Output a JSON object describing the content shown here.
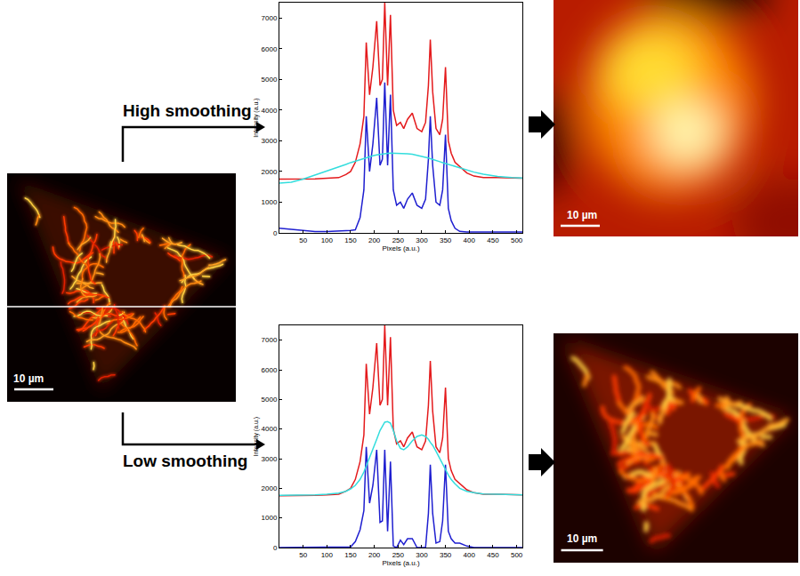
{
  "panels": {
    "source_scale_bar": "10 µm",
    "high_label": "High smoothing",
    "low_label": "Low smoothing",
    "result_scale_bars": [
      "10 µm",
      "10 µm"
    ]
  },
  "chart_data": [
    {
      "type": "line",
      "xlabel": "Pixels (a.u.)",
      "ylabel": "Intensity (a.u.)",
      "grid": false,
      "xlim": [
        0,
        512
      ],
      "ylim": [
        0,
        7500
      ],
      "xticks": [
        50,
        100,
        150,
        200,
        250,
        300,
        350,
        400,
        450,
        500
      ],
      "yticks": [
        0,
        1000,
        2000,
        3000,
        4000,
        5000,
        6000,
        7000
      ],
      "x": [
        0,
        25,
        50,
        75,
        100,
        125,
        140,
        150,
        160,
        170,
        178,
        183,
        190,
        197,
        205,
        212,
        217,
        222,
        228,
        234,
        240,
        247,
        255,
        262,
        270,
        280,
        290,
        300,
        308,
        314,
        318,
        323,
        330,
        338,
        344,
        350,
        356,
        362,
        370,
        380,
        395,
        410,
        430,
        460,
        490,
        512
      ],
      "series": [
        {
          "color": "#e41a1c",
          "values": [
            1750,
            1750,
            1760,
            1760,
            1780,
            1800,
            1900,
            2000,
            2300,
            2900,
            3800,
            6200,
            4500,
            5400,
            6900,
            4800,
            5000,
            7500,
            4800,
            7100,
            4000,
            3500,
            3600,
            3400,
            3700,
            3900,
            3400,
            3300,
            3600,
            4800,
            6300,
            4600,
            3400,
            3200,
            3700,
            5400,
            3000,
            2600,
            2300,
            2150,
            1950,
            1850,
            1800,
            1800,
            1780,
            1780
          ]
        },
        {
          "color": "#1f1fd0",
          "values": [
            150,
            110,
            60,
            40,
            40,
            50,
            60,
            80,
            100,
            500,
            1400,
            3800,
            2000,
            2900,
            4400,
            2200,
            2400,
            4900,
            2200,
            4500,
            1400,
            900,
            1000,
            800,
            1100,
            1300,
            900,
            800,
            1100,
            2400,
            3800,
            2200,
            1000,
            900,
            1400,
            3200,
            800,
            400,
            150,
            50,
            30,
            30,
            30,
            30,
            30,
            30
          ]
        },
        {
          "color": "#33dddd",
          "values": [
            1620,
            1650,
            1750,
            1880,
            2000,
            2150,
            2230,
            2290,
            2340,
            2390,
            2430,
            2450,
            2480,
            2510,
            2540,
            2560,
            2570,
            2580,
            2590,
            2600,
            2600,
            2600,
            2600,
            2590,
            2580,
            2560,
            2530,
            2500,
            2470,
            2440,
            2420,
            2400,
            2360,
            2320,
            2290,
            2260,
            2230,
            2200,
            2160,
            2110,
            2040,
            1980,
            1910,
            1840,
            1800,
            1790
          ]
        }
      ]
    },
    {
      "type": "line",
      "xlabel": "Pixels (a.u.)",
      "ylabel": "Intensity (a.u.)",
      "grid": false,
      "xlim": [
        0,
        512
      ],
      "ylim": [
        0,
        7500
      ],
      "xticks": [
        50,
        100,
        150,
        200,
        250,
        300,
        350,
        400,
        450,
        500
      ],
      "yticks": [
        0,
        1000,
        2000,
        3000,
        4000,
        5000,
        6000,
        7000
      ],
      "x": [
        0,
        25,
        50,
        75,
        100,
        125,
        140,
        150,
        160,
        170,
        178,
        183,
        190,
        197,
        205,
        212,
        217,
        222,
        228,
        234,
        240,
        247,
        255,
        262,
        270,
        280,
        290,
        300,
        308,
        314,
        318,
        323,
        330,
        338,
        344,
        350,
        356,
        362,
        370,
        380,
        395,
        410,
        430,
        460,
        490,
        512
      ],
      "series": [
        {
          "color": "#e41a1c",
          "values": [
            1750,
            1750,
            1760,
            1760,
            1780,
            1800,
            1900,
            2000,
            2300,
            2900,
            3800,
            6200,
            4500,
            5400,
            6900,
            4800,
            5000,
            7500,
            4800,
            7100,
            4000,
            3500,
            3600,
            3400,
            3700,
            3900,
            3400,
            3300,
            3600,
            4800,
            6300,
            4600,
            3400,
            3200,
            3700,
            5400,
            3000,
            2600,
            2300,
            2150,
            1950,
            1850,
            1800,
            1800,
            1780,
            1780
          ]
        },
        {
          "color": "#1f1fd0",
          "values": [
            0,
            0,
            0,
            0,
            0,
            0,
            0,
            20,
            200,
            600,
            1250,
            3400,
            1500,
            2100,
            3300,
            850,
            900,
            3300,
            550,
            2900,
            50,
            0,
            250,
            100,
            300,
            300,
            0,
            0,
            0,
            1150,
            2800,
            1150,
            150,
            200,
            900,
            2800,
            550,
            300,
            150,
            150,
            50,
            0,
            0,
            0,
            0,
            0
          ]
        },
        {
          "color": "#33dddd",
          "values": [
            1760,
            1760,
            1770,
            1780,
            1800,
            1840,
            1900,
            1980,
            2100,
            2300,
            2550,
            2750,
            3000,
            3300,
            3650,
            3950,
            4100,
            4230,
            4250,
            4200,
            3950,
            3600,
            3350,
            3300,
            3400,
            3600,
            3750,
            3800,
            3750,
            3650,
            3550,
            3450,
            3250,
            3000,
            2800,
            2600,
            2450,
            2300,
            2150,
            2000,
            1900,
            1850,
            1810,
            1800,
            1790,
            1780
          ]
        }
      ]
    }
  ]
}
